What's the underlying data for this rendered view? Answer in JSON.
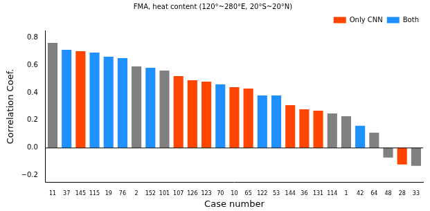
{
  "chart_data": {
    "type": "bar",
    "title": "FMA, heat content (120°~280°E, 20°S~20°N)",
    "x_label": "Case number",
    "y_label": "Correlation Coef.",
    "categories": [
      "11",
      "37",
      "145",
      "115",
      "19",
      "76",
      "2",
      "152",
      "101",
      "107",
      "126",
      "123",
      "70",
      "10",
      "65",
      "122",
      "53",
      "144",
      "36",
      "131",
      "114",
      "1",
      "42",
      "64",
      "48",
      "28",
      "33"
    ],
    "series": [
      {
        "name": "Only CNN",
        "color": "#ff4500",
        "values": [
          null,
          null,
          0.7,
          null,
          null,
          null,
          null,
          null,
          null,
          0.52,
          0.49,
          0.48,
          null,
          0.44,
          0.43,
          null,
          null,
          0.31,
          0.28,
          0.27,
          null,
          null,
          null,
          null,
          null,
          -0.12,
          null
        ]
      },
      {
        "name": "Both",
        "color": "#1e90ff",
        "values": [
          null,
          0.71,
          null,
          0.69,
          0.66,
          0.65,
          null,
          0.58,
          null,
          null,
          null,
          null,
          0.46,
          null,
          null,
          0.38,
          0.38,
          null,
          null,
          null,
          null,
          null,
          0.16,
          null,
          null,
          null,
          null
        ]
      },
      {
        "color": "#808080",
        "values": [
          0.76,
          null,
          null,
          null,
          null,
          null,
          0.59,
          null,
          0.56,
          null,
          null,
          null,
          null,
          null,
          null,
          null,
          null,
          null,
          null,
          null,
          0.25,
          0.23,
          null,
          0.11,
          -0.07,
          null,
          -0.13
        ]
      }
    ],
    "ylim": [
      -0.25,
      0.85
    ],
    "yticks": [
      {
        "value": -0.2,
        "label": "−0.2"
      },
      {
        "value": 0,
        "label": "0.0"
      },
      {
        "value": 0.2,
        "label": "0.2"
      },
      {
        "value": 0.4,
        "label": "0.4"
      },
      {
        "value": 0.6,
        "label": "0.6"
      },
      {
        "value": 0.8,
        "label": "0.8"
      }
    ],
    "grid": false,
    "legend": "upper right"
  }
}
